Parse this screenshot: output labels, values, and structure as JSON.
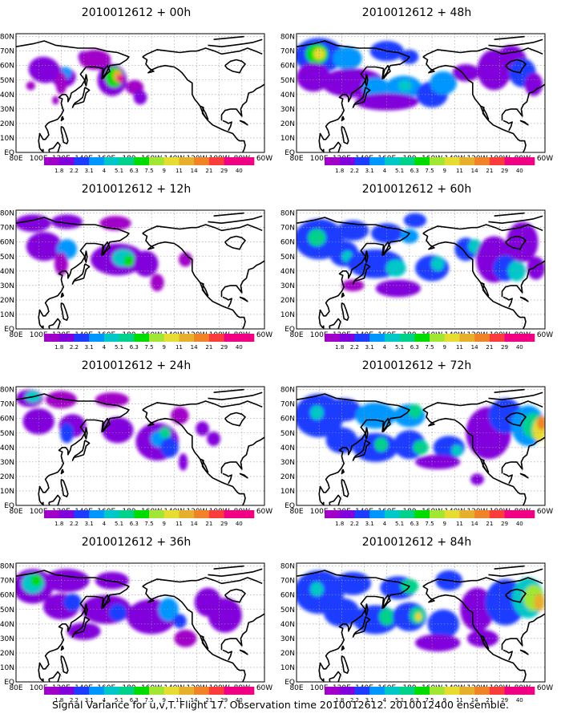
{
  "panels": [
    {
      "title": "2010012612 + 00h",
      "field": "p00"
    },
    {
      "title": "2010012612 + 48h",
      "field": "p48"
    },
    {
      "title": "2010012612 + 12h",
      "field": "p12"
    },
    {
      "title": "2010012612 + 60h",
      "field": "p60"
    },
    {
      "title": "2010012612 + 24h",
      "field": "p24"
    },
    {
      "title": "2010012612 + 72h",
      "field": "p72"
    },
    {
      "title": "2010012612 + 36h",
      "field": "p36"
    },
    {
      "title": "2010012612 + 84h",
      "field": "p84"
    }
  ],
  "lat_labels": [
    "80N",
    "70N",
    "60N",
    "50N",
    "40N",
    "30N",
    "20N",
    "10N",
    "EQ"
  ],
  "lon_labels": [
    "80E",
    "100E",
    "120E",
    "140E",
    "160E",
    "180",
    "160W",
    "140W",
    "120W",
    "100W",
    "80W",
    "60W"
  ],
  "colorbar": {
    "labels": [
      "1.8",
      "2.2",
      "3.1",
      "4",
      "5.1",
      "6.3",
      "7.5",
      "9",
      "11",
      "14",
      "21",
      "29",
      "40"
    ],
    "colors": [
      "#a000c8",
      "#8200dc",
      "#1e3cff",
      "#0096ff",
      "#00c8c8",
      "#00d28c",
      "#00dc00",
      "#a0e632",
      "#e6dc32",
      "#e6af2d",
      "#f08228",
      "#fa3c3c",
      "#f00082"
    ]
  },
  "caption": "Signal Variance for u,v,T. Flight 17. Observation time 2010012612. 2010012400 ensemble."
}
